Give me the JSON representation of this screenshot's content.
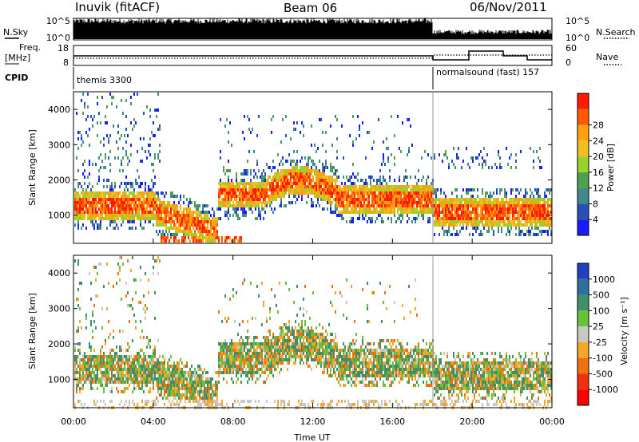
{
  "header": {
    "station": "Inuvik (fitACF)",
    "beam": "Beam 06",
    "date": "06/Nov/2011"
  },
  "status_panel": {
    "nsky_label": "N.Sky",
    "nsearch_label": "N.Search",
    "nsky_ticks": [
      "10^5",
      "10^0"
    ],
    "nsearch_ticks": [
      "10^5",
      "10^0"
    ],
    "freq_label": "Freq.",
    "freq_unit": "[MHz]",
    "freq_ticks": [
      "18",
      "8"
    ],
    "nave_label": "Nave",
    "nave_ticks": [
      "60",
      "0"
    ],
    "cpid_label": "CPID",
    "cpid_left": "themis 3300",
    "cpid_right": "normalsound (fast) 157"
  },
  "chart_data": [
    {
      "type": "heatmap",
      "name": "power",
      "ylabel": "Slant Range [km]",
      "yticks": [
        "1000",
        "2000",
        "3000",
        "4000"
      ],
      "ylim": [
        200,
        4500
      ],
      "colorbar_label": "Power [dB]",
      "colorbar_ticks": [
        "4",
        "8",
        "12",
        "16",
        "20",
        "24",
        "28"
      ],
      "colorbar_colors": [
        "#1a1aff",
        "#2b4fb8",
        "#3f8a8a",
        "#4ea04e",
        "#9bd12c",
        "#f0c020",
        "#ffa010",
        "#ff5a00",
        "#ff1a00"
      ]
    },
    {
      "type": "heatmap",
      "name": "velocity",
      "ylabel": "Slant Range [km]",
      "yticks": [
        "1000",
        "2000",
        "3000",
        "4000"
      ],
      "ylim": [
        200,
        4500
      ],
      "colorbar_label": "Velocity [m s⁻¹]",
      "colorbar_ticks": [
        "1000",
        "500",
        "100",
        "25",
        "-25",
        "-100",
        "-500",
        "-1000"
      ],
      "colorbar_colors": [
        "#2040c0",
        "#2d6fa0",
        "#3f8f6a",
        "#67c23a",
        "#c8c8c0",
        "#f7a628",
        "#f07010",
        "#f03010",
        "#ff0000"
      ]
    }
  ],
  "xaxis": {
    "ticks": [
      "00:00",
      "04:00",
      "08:00",
      "12:00",
      "16:00",
      "20:00",
      "00:00"
    ],
    "label": "Time UT"
  }
}
